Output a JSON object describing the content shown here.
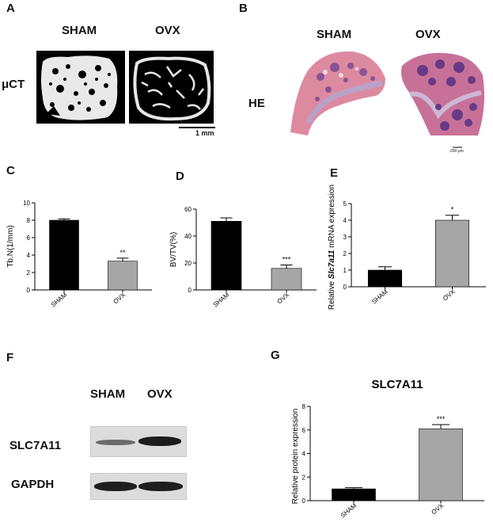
{
  "panels": {
    "A": "A",
    "B": "B",
    "C": "C",
    "D": "D",
    "E": "E",
    "F": "F",
    "G": "G"
  },
  "micro_ct": {
    "row_label": "μCT",
    "col_labels": [
      "SHAM",
      "OVX"
    ],
    "scale_bar": "1 mm"
  },
  "histology": {
    "row_label": "HE",
    "col_labels": [
      "SHAM",
      "OVX"
    ],
    "scale_bar": "200 μm"
  },
  "western_blot": {
    "col_labels": [
      "SHAM",
      "OVX"
    ],
    "rows": [
      "SLC7A11",
      "GAPDH"
    ]
  },
  "colors": {
    "sham_bar": "#000000",
    "ovx_bar": "#a6a6a6",
    "he_pink": "#d9748f",
    "he_purple": "#6b3c8a"
  },
  "chart_data": [
    {
      "id": "C",
      "type": "bar",
      "categories": [
        "SHAM",
        "OVX"
      ],
      "values": [
        8.0,
        3.3
      ],
      "errors": [
        0.15,
        0.35
      ],
      "significance": [
        "",
        "**"
      ],
      "ylabel": "Tb.N(1/mm)",
      "title": "",
      "ylim": [
        0,
        10
      ],
      "yticks": [
        0,
        2,
        4,
        6,
        8,
        10
      ]
    },
    {
      "id": "D",
      "type": "bar",
      "categories": [
        "SHAM",
        "OVX"
      ],
      "values": [
        51,
        16
      ],
      "errors": [
        2.5,
        2.5
      ],
      "significance": [
        "",
        "***"
      ],
      "ylabel": "BV/TV(%)",
      "title": "",
      "ylim": [
        0,
        60
      ],
      "yticks": [
        0,
        20,
        40,
        60
      ]
    },
    {
      "id": "E",
      "type": "bar",
      "categories": [
        "SHAM",
        "OVX"
      ],
      "values": [
        1.0,
        4.0
      ],
      "errors": [
        0.2,
        0.3
      ],
      "significance": [
        "",
        "*"
      ],
      "ylabel_prefix": "Relative ",
      "ylabel_italic": "Slc7a11",
      "ylabel_suffix": " mRNA expression",
      "title": "",
      "ylim": [
        0,
        5
      ],
      "yticks": [
        0,
        1,
        2,
        3,
        4,
        5
      ]
    },
    {
      "id": "G",
      "type": "bar",
      "categories": [
        "SHAM",
        "OVX"
      ],
      "values": [
        1.0,
        6.1
      ],
      "errors": [
        0.1,
        0.35
      ],
      "significance": [
        "",
        "***"
      ],
      "ylabel": "Relative protein expression",
      "title": "SLC7A11",
      "ylim": [
        0,
        8
      ],
      "yticks": [
        0,
        2,
        4,
        6,
        8
      ]
    }
  ]
}
